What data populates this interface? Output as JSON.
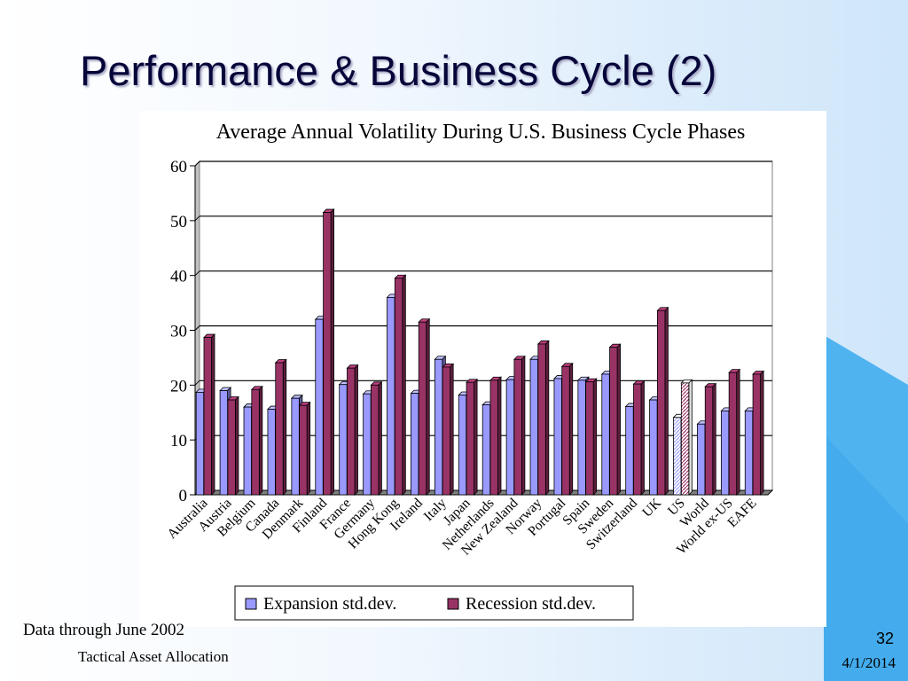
{
  "slide": {
    "title": "Performance & Business Cycle (2)",
    "note": "Data through June 2002",
    "footer_left": "Tactical Asset Allocation",
    "page_number": "32",
    "date": "4/1/2014"
  },
  "colors": {
    "expansion": "#9999ff",
    "recession": "#993366",
    "floor": "#808080",
    "accent": "#4fb3f0"
  },
  "chart_data": {
    "type": "bar",
    "title": "Average Annual Volatility During U.S. Business Cycle Phases",
    "xlabel": "",
    "ylabel": "",
    "ylim": [
      0,
      60
    ],
    "yticks": [
      0,
      10,
      20,
      30,
      40,
      50,
      60
    ],
    "grid": true,
    "legend_position": "bottom",
    "categories": [
      "Australia",
      "Austria",
      "Belgium",
      "Canada",
      "Denmark",
      "Finland",
      "France",
      "Germany",
      "Hong Kong",
      "Ireland",
      "Italy",
      "Japan",
      "Netherlands",
      "New Zealand",
      "Norway",
      "Portugal",
      "Spain",
      "Sweden",
      "Switzerland",
      "UK",
      "US",
      "World",
      "World ex-US",
      "EAFE"
    ],
    "series": [
      {
        "name": "Expansion std.dev.",
        "values": [
          18.7,
          19.0,
          16.0,
          15.6,
          17.6,
          32.0,
          20.1,
          18.4,
          36.0,
          18.5,
          24.7,
          18.2,
          16.4,
          21.0,
          24.7,
          21.2,
          20.9,
          22.0,
          16.1,
          17.3,
          14.1,
          12.9,
          15.3,
          15.3
        ]
      },
      {
        "name": "Recession std.dev.",
        "values": [
          28.7,
          17.3,
          19.2,
          24.1,
          16.3,
          51.5,
          23.1,
          20.0,
          39.5,
          31.5,
          23.3,
          20.5,
          20.9,
          24.7,
          27.5,
          23.4,
          20.6,
          26.9,
          20.2,
          33.6,
          20.4,
          19.7,
          22.3,
          22.0
        ]
      }
    ],
    "hatched_category": "US"
  }
}
